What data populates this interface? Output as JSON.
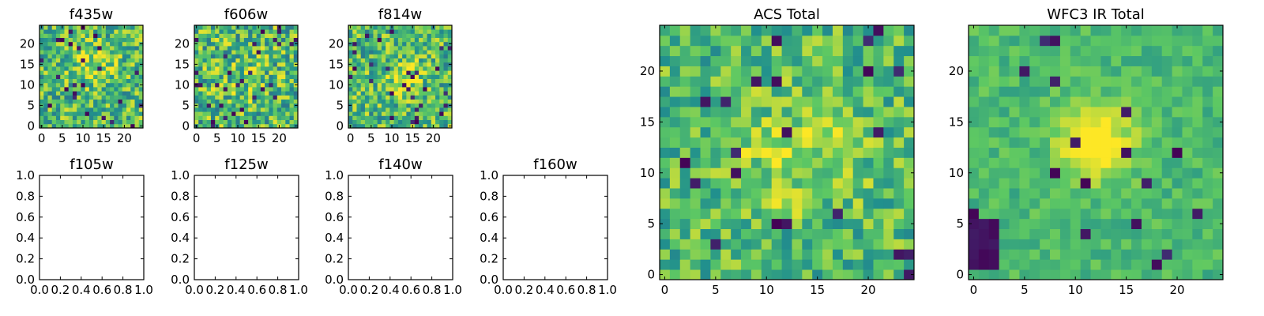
{
  "colors": {
    "viridis": [
      "#440154",
      "#3b528b",
      "#21908d",
      "#5dc863",
      "#fde725"
    ],
    "axes": "#000000",
    "background": "#ffffff"
  },
  "chart_data": [
    {
      "type": "heatmap",
      "title": "f435w",
      "grid_size": [
        25,
        25
      ],
      "xlim": [
        -0.5,
        24.5
      ],
      "ylim": [
        -0.5,
        24.5
      ],
      "xticks": [
        0,
        5,
        10,
        15,
        20
      ],
      "yticks": [
        0,
        5,
        10,
        15,
        20
      ],
      "seed": 11,
      "noise": 0.55,
      "hotspot": {
        "center": [
          12,
          15
        ],
        "sigma": 3.5,
        "amp": 0.2
      },
      "dark_frac": 0.03,
      "colormap": "viridis"
    },
    {
      "type": "heatmap",
      "title": "f606w",
      "grid_size": [
        25,
        25
      ],
      "xlim": [
        -0.5,
        24.5
      ],
      "ylim": [
        -0.5,
        24.5
      ],
      "xticks": [
        0,
        5,
        10,
        15,
        20
      ],
      "yticks": [
        0,
        5,
        10,
        15,
        20
      ],
      "seed": 23,
      "noise": 0.6,
      "hotspot": {
        "center": [
          12,
          12
        ],
        "sigma": 3.5,
        "amp": 0.1
      },
      "dark_frac": 0.05,
      "colormap": "viridis"
    },
    {
      "type": "heatmap",
      "title": "f814w",
      "grid_size": [
        25,
        25
      ],
      "xlim": [
        -0.5,
        24.5
      ],
      "ylim": [
        -0.5,
        24.5
      ],
      "xticks": [
        0,
        5,
        10,
        15,
        20
      ],
      "yticks": [
        0,
        5,
        10,
        15,
        20
      ],
      "seed": 37,
      "noise": 0.55,
      "hotspot": {
        "center": [
          13,
          12
        ],
        "sigma": 3.0,
        "amp": 0.25
      },
      "dark_frac": 0.04,
      "colormap": "viridis"
    },
    {
      "type": "heatmap",
      "title": "ACS Total",
      "grid_size": [
        25,
        25
      ],
      "xlim": [
        -0.5,
        24.5
      ],
      "ylim": [
        -0.5,
        24.5
      ],
      "xticks": [
        0,
        5,
        10,
        15,
        20
      ],
      "yticks": [
        0,
        5,
        10,
        15,
        20
      ],
      "seed": 41,
      "noise": 0.45,
      "hotspot": {
        "center": [
          13,
          12
        ],
        "sigma": 4.0,
        "amp": 0.2
      },
      "dark_frac": 0.03,
      "colormap": "viridis"
    },
    {
      "type": "heatmap",
      "title": "WFC3 IR Total",
      "grid_size": [
        25,
        25
      ],
      "xlim": [
        -0.5,
        24.5
      ],
      "ylim": [
        -0.5,
        24.5
      ],
      "xticks": [
        0,
        5,
        10,
        15,
        20
      ],
      "yticks": [
        0,
        5,
        10,
        15,
        20
      ],
      "seed": 59,
      "noise": 0.22,
      "hotspot": {
        "center": [
          12,
          13
        ],
        "sigma": 2.5,
        "amp": 0.45
      },
      "dark_frac": 0.02,
      "dark_patch": {
        "x": [
          0,
          1,
          2
        ],
        "y": [
          1,
          2,
          3,
          4,
          5
        ]
      },
      "colormap": "viridis"
    },
    {
      "type": "scatter",
      "title": "f105w",
      "xlim": [
        0.0,
        1.0
      ],
      "ylim": [
        0.0,
        1.0
      ],
      "xticks": [
        "0.0",
        "0.2",
        "0.4",
        "0.6",
        "0.8",
        "1.0"
      ],
      "yticks": [
        "0.0",
        "0.2",
        "0.4",
        "0.6",
        "0.8",
        "1.0"
      ],
      "x": [],
      "y": []
    },
    {
      "type": "scatter",
      "title": "f125w",
      "xlim": [
        0.0,
        1.0
      ],
      "ylim": [
        0.0,
        1.0
      ],
      "xticks": [
        "0.0",
        "0.2",
        "0.4",
        "0.6",
        "0.8",
        "1.0"
      ],
      "yticks": [
        "0.0",
        "0.2",
        "0.4",
        "0.6",
        "0.8",
        "1.0"
      ],
      "x": [],
      "y": []
    },
    {
      "type": "scatter",
      "title": "f140w",
      "xlim": [
        0.0,
        1.0
      ],
      "ylim": [
        0.0,
        1.0
      ],
      "xticks": [
        "0.0",
        "0.2",
        "0.4",
        "0.6",
        "0.8",
        "1.0"
      ],
      "yticks": [
        "0.0",
        "0.2",
        "0.4",
        "0.6",
        "0.8",
        "1.0"
      ],
      "x": [],
      "y": []
    },
    {
      "type": "scatter",
      "title": "f160w",
      "xlim": [
        0.0,
        1.0
      ],
      "ylim": [
        0.0,
        1.0
      ],
      "xticks": [
        "0.0",
        "0.2",
        "0.4",
        "0.6",
        "0.8",
        "1.0"
      ],
      "yticks": [
        "0.0",
        "0.2",
        "0.4",
        "0.6",
        "0.8",
        "1.0"
      ],
      "x": [],
      "y": []
    }
  ]
}
